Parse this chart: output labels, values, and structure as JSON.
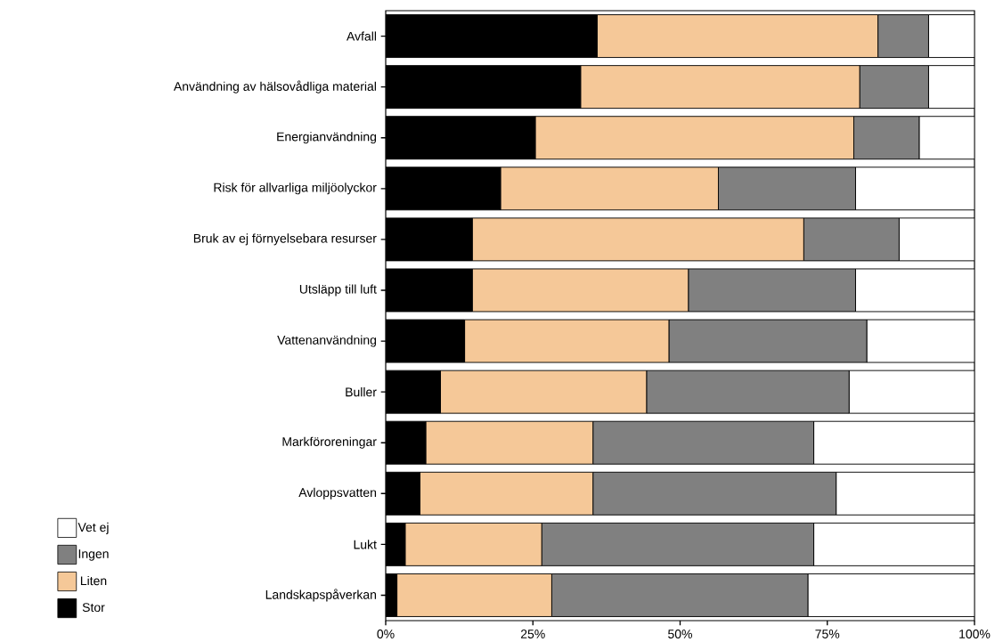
{
  "chart_data": {
    "type": "bar",
    "orientation": "horizontal",
    "stacked": true,
    "legend": "bottom left",
    "categories": [
      "Avfall",
      "Användning av hälsovådliga material",
      "Energianvändning",
      "Risk för allvarliga miljöolyckor",
      "Bruk av ej förnyelsebara resurser",
      "Utsläpp till luft",
      "Vattenanvändning",
      "Buller",
      "Markföroreningar",
      "Avloppsvatten",
      "Lukt",
      "Landskapspåverkan"
    ],
    "series": [
      {
        "name": "Stor",
        "color": "#000000",
        "values": [
          35.9,
          33.1,
          25.4,
          19.5,
          14.7,
          14.7,
          13.4,
          9.3,
          6.8,
          5.8,
          3.3,
          1.9
        ]
      },
      {
        "name": "Liten",
        "color": "#f5c898",
        "values": [
          47.7,
          47.4,
          54.1,
          37.0,
          56.3,
          36.7,
          34.7,
          35.0,
          28.4,
          29.4,
          23.2,
          26.3
        ]
      },
      {
        "name": "Ingen",
        "color": "#808080",
        "values": [
          8.6,
          11.7,
          11.1,
          23.3,
          16.2,
          28.4,
          33.6,
          34.4,
          37.5,
          41.3,
          46.2,
          43.5
        ]
      },
      {
        "name": "Vet ej",
        "color": "#ffffff",
        "values": [
          7.8,
          7.8,
          9.4,
          20.2,
          12.8,
          20.2,
          18.3,
          21.3,
          27.3,
          23.5,
          27.3,
          28.3
        ]
      }
    ],
    "xlim": [
      0,
      100
    ],
    "xticks": [
      {
        "value": 0,
        "label": "0%"
      },
      {
        "value": 25,
        "label": "25%"
      },
      {
        "value": 50,
        "label": "50%"
      },
      {
        "value": 75,
        "label": "75%"
      },
      {
        "value": 100,
        "label": "100%"
      }
    ]
  }
}
